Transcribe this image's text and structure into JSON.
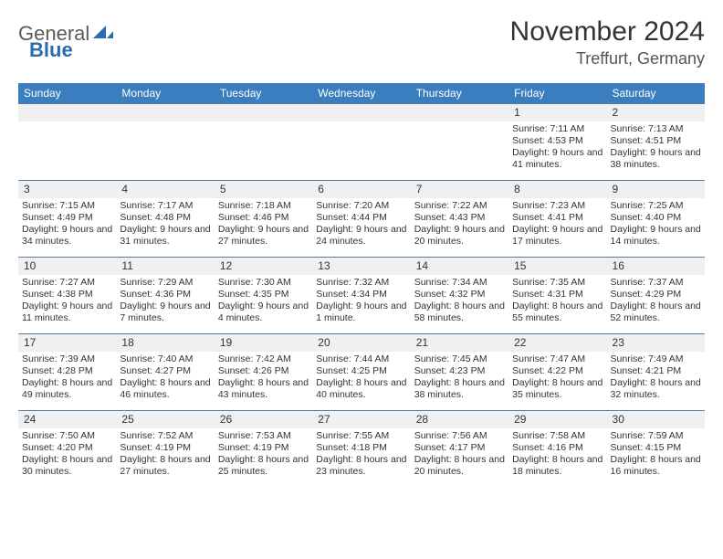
{
  "logo": {
    "text1": "General",
    "text2": "Blue"
  },
  "title": "November 2024",
  "location": "Treffurt, Germany",
  "colors": {
    "header_bg": "#3a7ebf",
    "header_text": "#ffffff",
    "daynum_bg": "#eef0f2",
    "border": "#5a7a9a",
    "text": "#333333",
    "logo_gray": "#5a5a5a",
    "logo_blue": "#2a6db0"
  },
  "weekdays": [
    "Sunday",
    "Monday",
    "Tuesday",
    "Wednesday",
    "Thursday",
    "Friday",
    "Saturday"
  ],
  "weeks": [
    [
      null,
      null,
      null,
      null,
      null,
      {
        "d": "1",
        "sr": "7:11 AM",
        "ss": "4:53 PM",
        "dl": "9 hours and 41 minutes."
      },
      {
        "d": "2",
        "sr": "7:13 AM",
        "ss": "4:51 PM",
        "dl": "9 hours and 38 minutes."
      }
    ],
    [
      {
        "d": "3",
        "sr": "7:15 AM",
        "ss": "4:49 PM",
        "dl": "9 hours and 34 minutes."
      },
      {
        "d": "4",
        "sr": "7:17 AM",
        "ss": "4:48 PM",
        "dl": "9 hours and 31 minutes."
      },
      {
        "d": "5",
        "sr": "7:18 AM",
        "ss": "4:46 PM",
        "dl": "9 hours and 27 minutes."
      },
      {
        "d": "6",
        "sr": "7:20 AM",
        "ss": "4:44 PM",
        "dl": "9 hours and 24 minutes."
      },
      {
        "d": "7",
        "sr": "7:22 AM",
        "ss": "4:43 PM",
        "dl": "9 hours and 20 minutes."
      },
      {
        "d": "8",
        "sr": "7:23 AM",
        "ss": "4:41 PM",
        "dl": "9 hours and 17 minutes."
      },
      {
        "d": "9",
        "sr": "7:25 AM",
        "ss": "4:40 PM",
        "dl": "9 hours and 14 minutes."
      }
    ],
    [
      {
        "d": "10",
        "sr": "7:27 AM",
        "ss": "4:38 PM",
        "dl": "9 hours and 11 minutes."
      },
      {
        "d": "11",
        "sr": "7:29 AM",
        "ss": "4:36 PM",
        "dl": "9 hours and 7 minutes."
      },
      {
        "d": "12",
        "sr": "7:30 AM",
        "ss": "4:35 PM",
        "dl": "9 hours and 4 minutes."
      },
      {
        "d": "13",
        "sr": "7:32 AM",
        "ss": "4:34 PM",
        "dl": "9 hours and 1 minute."
      },
      {
        "d": "14",
        "sr": "7:34 AM",
        "ss": "4:32 PM",
        "dl": "8 hours and 58 minutes."
      },
      {
        "d": "15",
        "sr": "7:35 AM",
        "ss": "4:31 PM",
        "dl": "8 hours and 55 minutes."
      },
      {
        "d": "16",
        "sr": "7:37 AM",
        "ss": "4:29 PM",
        "dl": "8 hours and 52 minutes."
      }
    ],
    [
      {
        "d": "17",
        "sr": "7:39 AM",
        "ss": "4:28 PM",
        "dl": "8 hours and 49 minutes."
      },
      {
        "d": "18",
        "sr": "7:40 AM",
        "ss": "4:27 PM",
        "dl": "8 hours and 46 minutes."
      },
      {
        "d": "19",
        "sr": "7:42 AM",
        "ss": "4:26 PM",
        "dl": "8 hours and 43 minutes."
      },
      {
        "d": "20",
        "sr": "7:44 AM",
        "ss": "4:25 PM",
        "dl": "8 hours and 40 minutes."
      },
      {
        "d": "21",
        "sr": "7:45 AM",
        "ss": "4:23 PM",
        "dl": "8 hours and 38 minutes."
      },
      {
        "d": "22",
        "sr": "7:47 AM",
        "ss": "4:22 PM",
        "dl": "8 hours and 35 minutes."
      },
      {
        "d": "23",
        "sr": "7:49 AM",
        "ss": "4:21 PM",
        "dl": "8 hours and 32 minutes."
      }
    ],
    [
      {
        "d": "24",
        "sr": "7:50 AM",
        "ss": "4:20 PM",
        "dl": "8 hours and 30 minutes."
      },
      {
        "d": "25",
        "sr": "7:52 AM",
        "ss": "4:19 PM",
        "dl": "8 hours and 27 minutes."
      },
      {
        "d": "26",
        "sr": "7:53 AM",
        "ss": "4:19 PM",
        "dl": "8 hours and 25 minutes."
      },
      {
        "d": "27",
        "sr": "7:55 AM",
        "ss": "4:18 PM",
        "dl": "8 hours and 23 minutes."
      },
      {
        "d": "28",
        "sr": "7:56 AM",
        "ss": "4:17 PM",
        "dl": "8 hours and 20 minutes."
      },
      {
        "d": "29",
        "sr": "7:58 AM",
        "ss": "4:16 PM",
        "dl": "8 hours and 18 minutes."
      },
      {
        "d": "30",
        "sr": "7:59 AM",
        "ss": "4:15 PM",
        "dl": "8 hours and 16 minutes."
      }
    ]
  ],
  "labels": {
    "sunrise": "Sunrise:",
    "sunset": "Sunset:",
    "daylight": "Daylight:"
  }
}
